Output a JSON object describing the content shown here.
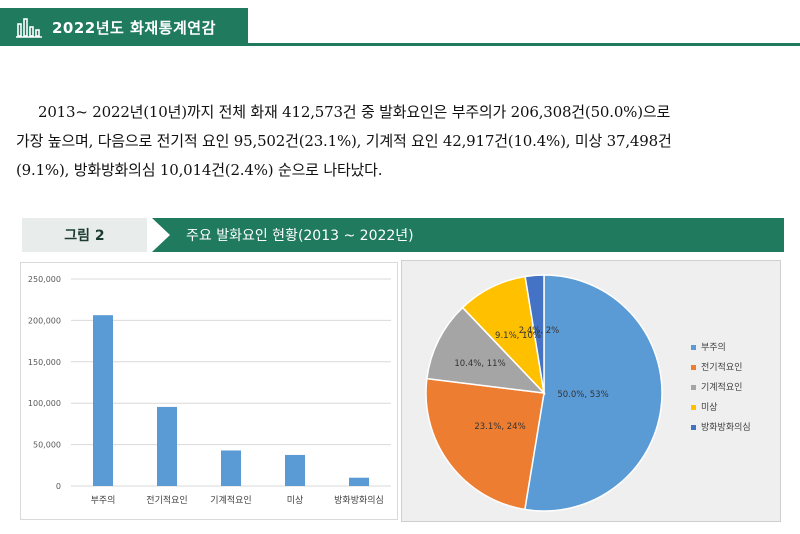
{
  "header": {
    "title": "2022년도 화재통계연감",
    "icon": "bar-chart-icon",
    "color": "#1f7a5e"
  },
  "paragraph": {
    "line1": "2013~ 2022년(10년)까지 전체 화재 412,573건 중 발화요인은 부주의가 206,308건(50.0%)으로",
    "line2": "가장 높으며, 다음으로 전기적 요인 95,502건(23.1%), 기계적 요인 42,917건(10.4%), 미상 37,498건",
    "line3": "(9.1%), 방화방화의심 10,014건(2.4%) 순으로 나타났다."
  },
  "figure": {
    "label": "그림 2",
    "title": "주요 발화요인 현황(2013 ~ 2022년)"
  },
  "chart_data": [
    {
      "type": "bar",
      "categories": [
        "부주의",
        "전기적요인",
        "기계적요인",
        "미상",
        "방화방화의심"
      ],
      "values": [
        206308,
        95502,
        42917,
        37498,
        10014
      ],
      "yticks": [
        "0",
        "50,000",
        "100,000",
        "150,000",
        "200,000",
        "250,000"
      ],
      "ylim": [
        0,
        250000
      ],
      "grid": true,
      "color": "#5b9bd5"
    },
    {
      "type": "pie",
      "labels": [
        "부주의",
        "전기적요인",
        "기계적요인",
        "미상",
        "방화방화의심"
      ],
      "values": [
        206308,
        95502,
        42917,
        37498,
        10014
      ],
      "slice_labels": [
        "50.0%, 53%",
        "23.1%, 24%",
        "10.4%, 11%",
        "9.1%, 10%",
        "2.4%, 2%"
      ],
      "colors": [
        "#5b9bd5",
        "#ed7d31",
        "#a5a5a5",
        "#ffc000",
        "#4472c4"
      ],
      "legend": "right"
    }
  ]
}
